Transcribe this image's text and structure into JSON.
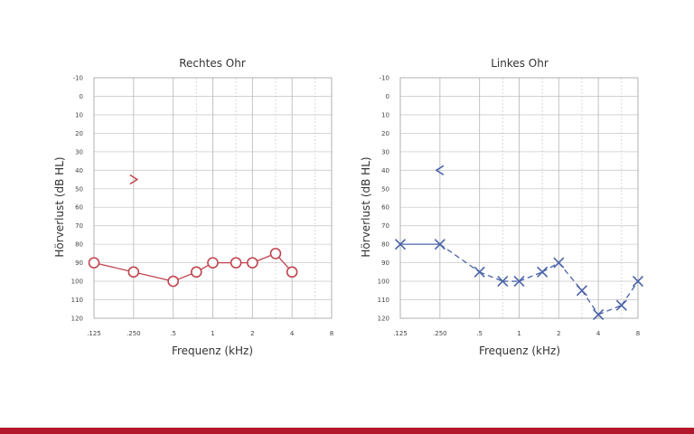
{
  "chart_data": [
    {
      "type": "line",
      "title": "Rechtes Ohr",
      "xlabel": "Frequenz (kHz)",
      "ylabel": "Hörverlust (dB HL)",
      "x_scale": "log",
      "xlim": [
        0.125,
        8
      ],
      "ylim": [
        -10,
        120
      ],
      "y_inverted": true,
      "x_ticks": [
        ".125",
        ".250",
        ".5",
        "1",
        "2",
        "4",
        "8"
      ],
      "y_ticks": [
        "-10",
        "0",
        "10",
        "20",
        "30",
        "40",
        "50",
        "60",
        "70",
        "80",
        "90",
        "100",
        "110",
        "120"
      ],
      "grid": "on",
      "series": [
        {
          "marker": "circle",
          "color": "#c0444f",
          "points": [
            {
              "x": 0.125,
              "y": 90
            },
            {
              "x": 0.25,
              "y": 95
            },
            {
              "x": 0.5,
              "y": 100
            },
            {
              "x": 0.75,
              "y": 95
            },
            {
              "x": 1,
              "y": 90
            },
            {
              "x": 1.5,
              "y": 90
            },
            {
              "x": 2,
              "y": 90
            },
            {
              "x": 3,
              "y": 85
            },
            {
              "x": 4,
              "y": 95
            }
          ]
        },
        {
          "marker": "bracket-right",
          "color": "#c0444f",
          "points": [
            {
              "x": 0.25,
              "y": 45
            }
          ]
        }
      ]
    },
    {
      "type": "line",
      "title": "Linkes Ohr",
      "xlabel": "Frequenz (kHz)",
      "ylabel": "Hörverlust (dB HL)",
      "x_scale": "log",
      "xlim": [
        0.125,
        8
      ],
      "ylim": [
        -10,
        120
      ],
      "y_inverted": true,
      "x_ticks": [
        ".125",
        ".250",
        ".5",
        "1",
        "2",
        "4",
        "8"
      ],
      "y_ticks": [
        "-10",
        "0",
        "10",
        "20",
        "30",
        "40",
        "50",
        "60",
        "70",
        "80",
        "90",
        "100",
        "110",
        "120"
      ],
      "grid": "on",
      "series": [
        {
          "marker": "cross",
          "color": "#4a63a8",
          "points": [
            {
              "x": 0.125,
              "y": 80
            },
            {
              "x": 0.25,
              "y": 80
            },
            {
              "x": 0.5,
              "y": 95
            },
            {
              "x": 0.75,
              "y": 100
            },
            {
              "x": 1,
              "y": 100
            },
            {
              "x": 1.5,
              "y": 95
            },
            {
              "x": 2,
              "y": 90
            },
            {
              "x": 3,
              "y": 105
            },
            {
              "x": 4,
              "y": 118
            },
            {
              "x": 6,
              "y": 113
            },
            {
              "x": 8,
              "y": 100
            }
          ]
        },
        {
          "marker": "bracket-left",
          "color": "#4a63a8",
          "points": [
            {
              "x": 0.25,
              "y": 40
            }
          ]
        }
      ]
    }
  ],
  "footer": {
    "bar_color": "#b3172c"
  }
}
